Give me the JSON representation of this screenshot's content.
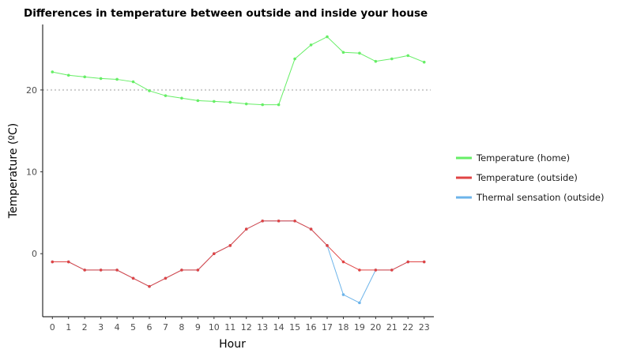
{
  "chart_data": {
    "type": "line",
    "title": "Differences in temperature between outside and inside your house",
    "xlabel": "Hour",
    "ylabel": "Temperature (ºC)",
    "x": [
      0,
      1,
      2,
      3,
      4,
      5,
      6,
      7,
      8,
      9,
      10,
      11,
      12,
      13,
      14,
      15,
      16,
      17,
      18,
      19,
      20,
      21,
      22,
      23
    ],
    "xlim": [
      -0.6,
      23.6
    ],
    "ylim": [
      -7.7,
      28.0
    ],
    "yticks": [
      0,
      10,
      20
    ],
    "reference_line": {
      "y": 20,
      "style": "dotted",
      "color": "#cccccc"
    },
    "legend_position": "right",
    "grid": false,
    "series": [
      {
        "name": "Temperature (home)",
        "color": "#66ee66",
        "values": [
          22.2,
          21.8,
          21.6,
          21.4,
          21.3,
          21.0,
          19.9,
          19.3,
          19.0,
          18.7,
          18.6,
          18.5,
          18.3,
          18.2,
          18.2,
          23.8,
          25.5,
          26.5,
          24.6,
          24.5,
          23.5,
          23.8,
          24.2,
          23.4
        ]
      },
      {
        "name": "Temperature (outside)",
        "color": "#e04444",
        "values": [
          -1,
          -1,
          -2,
          -2,
          -2,
          -3,
          -4,
          -3,
          -2,
          -2,
          0,
          1,
          3,
          4,
          4,
          4,
          3,
          1,
          -1,
          -2,
          -2,
          -2,
          -1,
          -1
        ]
      },
      {
        "name": "Thermal sensation (outside)",
        "color": "#6cb4ea",
        "values": [
          -1,
          -1,
          -2,
          -2,
          -2,
          -3,
          -4,
          -3,
          -2,
          -2,
          0,
          1,
          3,
          4,
          4,
          4,
          3,
          1,
          -5,
          -6,
          -2,
          -2,
          -1,
          -1
        ]
      }
    ]
  }
}
